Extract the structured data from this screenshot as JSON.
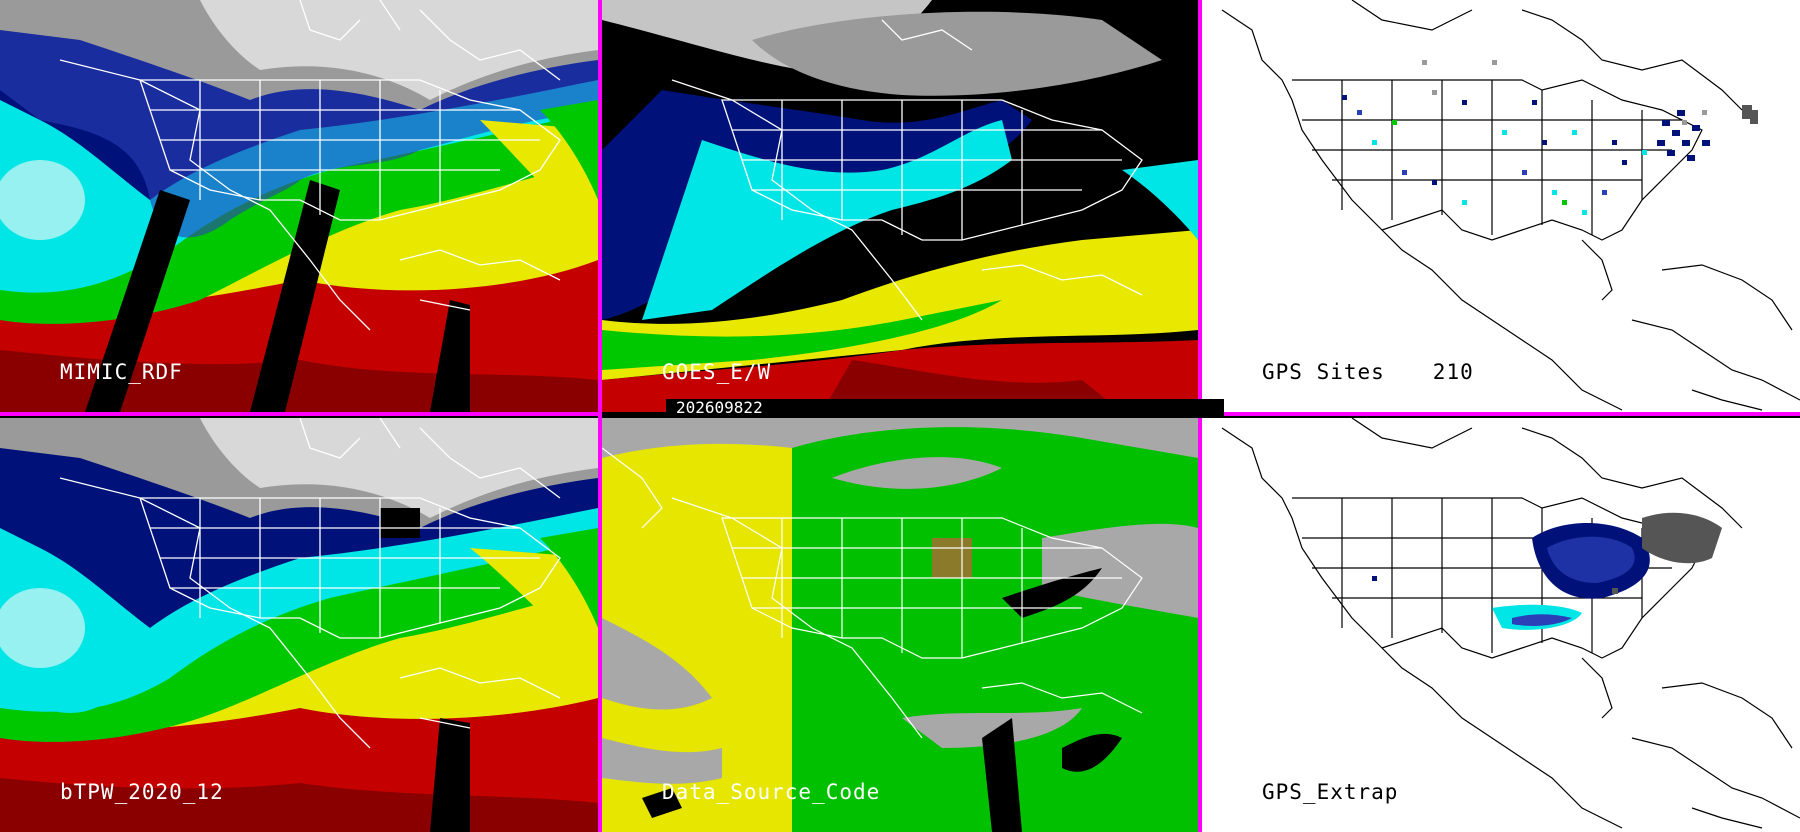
{
  "panels": {
    "top_left": {
      "label": "MIMIC_RDF"
    },
    "top_middle": {
      "label": "GOES_E/W"
    },
    "top_right": {
      "label": "GPS Sites",
      "count": "210"
    },
    "bottom_left": {
      "label": "bTPW_2020_12"
    },
    "bottom_middle": {
      "label": "Data_Source_Code"
    },
    "bottom_right": {
      "label": "GPS_Extrap"
    }
  },
  "timestamp": "202609822",
  "colors": {
    "divider": "#ff00ff",
    "palette": [
      "#e7e7e7",
      "#9a9a9a",
      "#00127a",
      "#2b3fb8",
      "#00e5e5",
      "#00c800",
      "#e8e800",
      "#c40000",
      "#000000"
    ],
    "source_code": [
      "#e6e600",
      "#00c000",
      "#a8a8a8",
      "#8a7a2a"
    ]
  },
  "icons": {
    "map_style": "us-state-outline-map",
    "sat_style": "satellite-water-vapor-imagery"
  }
}
